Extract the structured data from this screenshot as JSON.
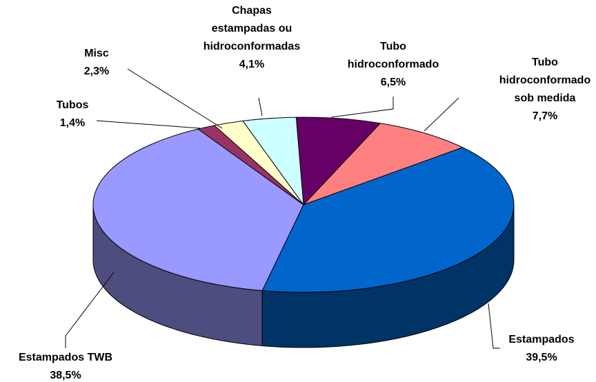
{
  "chart_data": {
    "type": "pie3d",
    "categories": [
      "Tubo\nhidroconformado",
      "Tubo\nhidroconformado\nsob medida",
      "Estampados",
      "Estampados TWB",
      "Tubos",
      "Misc",
      "Chapas\nestampadas ou\nhidroconformadas"
    ],
    "values": [
      6.5,
      7.7,
      39.5,
      38.5,
      1.4,
      2.3,
      4.1
    ],
    "value_labels": [
      "6,5%",
      "7,7%",
      "39,5%",
      "38,5%",
      "1,4%",
      "2,3%",
      "4,1%"
    ],
    "colors": [
      "#660066",
      "#ff8080",
      "#0066cc",
      "#9999ff",
      "#993366",
      "#ffffcc",
      "#ccffff"
    ]
  }
}
